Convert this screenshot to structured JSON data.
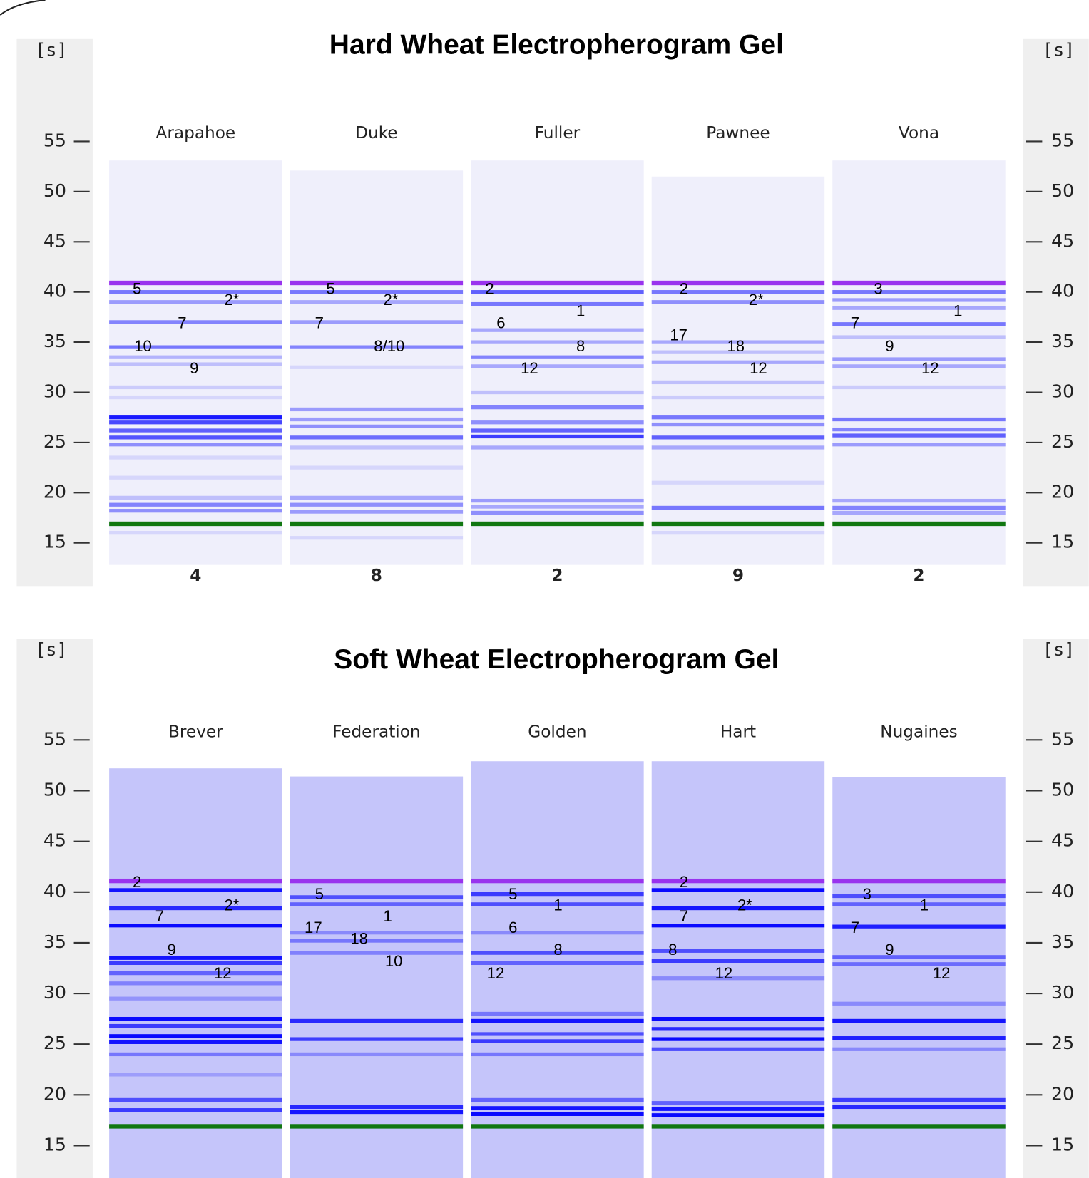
{
  "chart_data": [
    {
      "type": "gel",
      "title": "Hard Wheat  Electropherogram Gel",
      "y_label": "[s]",
      "ylim": [
        10.7,
        65.2
      ],
      "yticks": [
        15,
        20,
        25,
        30,
        35,
        40,
        45,
        50,
        55
      ],
      "lane_color": "#efeffb",
      "band_color": "#0000ff",
      "markers": [
        {
          "time": 40.9,
          "color": "#9933ee"
        },
        {
          "time": 16.9,
          "color": "#117711"
        }
      ],
      "lanes": [
        {
          "name": "Arapahoe",
          "value": 4,
          "range": [
            12.8,
            53.1
          ],
          "bands": [
            [
              40.0,
              0.5
            ],
            [
              39.0,
              0.35
            ],
            [
              37.0,
              0.45
            ],
            [
              34.5,
              0.5
            ],
            [
              33.5,
              0.25
            ],
            [
              32.8,
              0.2
            ],
            [
              30.5,
              0.15
            ],
            [
              29.5,
              0.1
            ],
            [
              27.5,
              0.9
            ],
            [
              27.0,
              0.7
            ],
            [
              26.2,
              0.6
            ],
            [
              25.5,
              0.65
            ],
            [
              24.8,
              0.4
            ],
            [
              23.5,
              0.1
            ],
            [
              21.5,
              0.1
            ],
            [
              19.5,
              0.2
            ],
            [
              18.8,
              0.45
            ],
            [
              18.2,
              0.4
            ],
            [
              16.0,
              0.1
            ]
          ],
          "annotations": [
            {
              "label": "5",
              "time": 40.2
            },
            {
              "label": "2*",
              "time": 39.1
            },
            {
              "label": "7",
              "time": 36.8
            },
            {
              "label": "10",
              "time": 34.5
            },
            {
              "label": "9",
              "time": 32.3
            }
          ]
        },
        {
          "name": "Duke",
          "value": 8,
          "range": [
            12.8,
            52.1
          ],
          "bands": [
            [
              40.0,
              0.5
            ],
            [
              39.0,
              0.3
            ],
            [
              37.0,
              0.35
            ],
            [
              34.5,
              0.45
            ],
            [
              32.5,
              0.1
            ],
            [
              28.3,
              0.35
            ],
            [
              27.3,
              0.35
            ],
            [
              26.6,
              0.4
            ],
            [
              25.5,
              0.55
            ],
            [
              24.5,
              0.2
            ],
            [
              22.5,
              0.1
            ],
            [
              19.5,
              0.3
            ],
            [
              18.8,
              0.4
            ],
            [
              18.1,
              0.35
            ],
            [
              15.5,
              0.1
            ]
          ],
          "annotations": [
            {
              "label": "5",
              "time": 40.2
            },
            {
              "label": "2*",
              "time": 39.1
            },
            {
              "label": "7",
              "time": 36.8
            },
            {
              "label": "8/10",
              "time": 34.5
            }
          ]
        },
        {
          "name": "Fuller",
          "value": 2,
          "range": [
            12.8,
            53.1
          ],
          "bands": [
            [
              40.0,
              0.6
            ],
            [
              38.8,
              0.5
            ],
            [
              36.2,
              0.3
            ],
            [
              35.0,
              0.3
            ],
            [
              33.5,
              0.45
            ],
            [
              32.6,
              0.3
            ],
            [
              30.0,
              0.2
            ],
            [
              28.5,
              0.45
            ],
            [
              27.0,
              0.4
            ],
            [
              26.2,
              0.6
            ],
            [
              25.6,
              0.75
            ],
            [
              24.5,
              0.3
            ],
            [
              19.2,
              0.35
            ],
            [
              18.6,
              0.3
            ],
            [
              18.0,
              0.4
            ]
          ],
          "annotations": [
            {
              "label": "2",
              "time": 40.2
            },
            {
              "label": "1",
              "time": 38.0
            },
            {
              "label": "6",
              "time": 36.8
            },
            {
              "label": "8",
              "time": 34.5
            },
            {
              "label": "12",
              "time": 32.3
            }
          ]
        },
        {
          "name": "Pawnee",
          "value": 9,
          "range": [
            12.8,
            51.5
          ],
          "bands": [
            [
              40.0,
              0.5
            ],
            [
              39.0,
              0.4
            ],
            [
              35.0,
              0.3
            ],
            [
              34.0,
              0.2
            ],
            [
              33.0,
              0.3
            ],
            [
              31.0,
              0.2
            ],
            [
              29.5,
              0.15
            ],
            [
              27.5,
              0.5
            ],
            [
              26.8,
              0.4
            ],
            [
              25.5,
              0.6
            ],
            [
              24.5,
              0.3
            ],
            [
              21.0,
              0.1
            ],
            [
              18.5,
              0.5
            ],
            [
              16.0,
              0.1
            ]
          ],
          "annotations": [
            {
              "label": "2",
              "time": 40.2
            },
            {
              "label": "2*",
              "time": 39.1
            },
            {
              "label": "17",
              "time": 35.6
            },
            {
              "label": "18",
              "time": 34.5
            },
            {
              "label": "12",
              "time": 32.3
            }
          ]
        },
        {
          "name": "Vona",
          "value": 2,
          "range": [
            12.8,
            53.1
          ],
          "bands": [
            [
              40.0,
              0.5
            ],
            [
              39.2,
              0.35
            ],
            [
              38.4,
              0.3
            ],
            [
              36.8,
              0.5
            ],
            [
              35.5,
              0.2
            ],
            [
              33.3,
              0.35
            ],
            [
              32.6,
              0.3
            ],
            [
              30.5,
              0.15
            ],
            [
              27.3,
              0.5
            ],
            [
              26.3,
              0.45
            ],
            [
              25.7,
              0.6
            ],
            [
              24.8,
              0.35
            ],
            [
              19.2,
              0.3
            ],
            [
              18.5,
              0.45
            ],
            [
              18.0,
              0.3
            ]
          ],
          "annotations": [
            {
              "label": "3",
              "time": 40.2
            },
            {
              "label": "1",
              "time": 38.0
            },
            {
              "label": "7",
              "time": 36.8
            },
            {
              "label": "9",
              "time": 34.5
            },
            {
              "label": "12",
              "time": 32.3
            }
          ]
        }
      ]
    },
    {
      "type": "gel",
      "title": "Soft Wheat Electropherogram Gel",
      "y_label": "[s]",
      "ylim": [
        11.8,
        65.0
      ],
      "yticks": [
        15,
        20,
        25,
        30,
        35,
        40,
        45,
        50,
        55
      ],
      "lane_color": "#c5c5fa",
      "band_color": "#0000ff",
      "markers": [
        {
          "time": 41.1,
          "color": "#9933ee"
        },
        {
          "time": 16.9,
          "color": "#117711"
        }
      ],
      "lanes": [
        {
          "name": "Brever",
          "range": [
            11.8,
            52.2
          ],
          "bands": [
            [
              40.2,
              0.9
            ],
            [
              38.4,
              0.8
            ],
            [
              36.7,
              0.95
            ],
            [
              33.5,
              0.9
            ],
            [
              33.0,
              0.7
            ],
            [
              32.0,
              0.5
            ],
            [
              31.0,
              0.35
            ],
            [
              29.5,
              0.25
            ],
            [
              27.5,
              0.95
            ],
            [
              26.8,
              0.7
            ],
            [
              25.8,
              0.95
            ],
            [
              25.2,
              0.9
            ],
            [
              24.0,
              0.4
            ],
            [
              22.0,
              0.2
            ],
            [
              19.5,
              0.6
            ],
            [
              18.5,
              0.7
            ]
          ],
          "annotations": [
            {
              "label": "2",
              "time": 40.9
            },
            {
              "label": "2*",
              "time": 38.6
            },
            {
              "label": "7",
              "time": 37.5
            },
            {
              "label": "9",
              "time": 34.2
            },
            {
              "label": "12",
              "time": 31.9
            }
          ]
        },
        {
          "name": "Federation",
          "range": [
            11.8,
            51.4
          ],
          "bands": [
            [
              39.5,
              0.6
            ],
            [
              38.8,
              0.5
            ],
            [
              36.0,
              0.3
            ],
            [
              35.2,
              0.4
            ],
            [
              34.0,
              0.35
            ],
            [
              27.3,
              0.8
            ],
            [
              25.5,
              0.7
            ],
            [
              24.0,
              0.3
            ],
            [
              18.8,
              0.8
            ],
            [
              18.3,
              0.9
            ]
          ],
          "annotations": [
            {
              "label": "5",
              "time": 39.7
            },
            {
              "label": "1",
              "time": 37.5
            },
            {
              "label": "17",
              "time": 36.4
            },
            {
              "label": "18",
              "time": 35.3
            },
            {
              "label": "10",
              "time": 33.1
            }
          ]
        },
        {
          "name": "Golden",
          "range": [
            11.8,
            52.9
          ],
          "bands": [
            [
              39.8,
              0.7
            ],
            [
              38.8,
              0.6
            ],
            [
              36.0,
              0.3
            ],
            [
              34.0,
              0.6
            ],
            [
              33.0,
              0.5
            ],
            [
              28.0,
              0.4
            ],
            [
              27.3,
              0.9
            ],
            [
              26.0,
              0.6
            ],
            [
              25.3,
              0.7
            ],
            [
              24.0,
              0.4
            ],
            [
              19.5,
              0.5
            ],
            [
              18.7,
              0.9
            ],
            [
              18.1,
              0.95
            ]
          ],
          "annotations": [
            {
              "label": "5",
              "time": 39.7
            },
            {
              "label": "1",
              "time": 38.6
            },
            {
              "label": "6",
              "time": 36.4
            },
            {
              "label": "8",
              "time": 34.2
            },
            {
              "label": "12",
              "time": 31.9
            }
          ]
        },
        {
          "name": "Hart",
          "range": [
            11.8,
            52.9
          ],
          "bands": [
            [
              40.2,
              0.95
            ],
            [
              38.4,
              0.9
            ],
            [
              36.7,
              0.95
            ],
            [
              34.2,
              0.6
            ],
            [
              33.2,
              0.7
            ],
            [
              31.5,
              0.3
            ],
            [
              27.5,
              0.95
            ],
            [
              26.5,
              0.8
            ],
            [
              25.5,
              0.95
            ],
            [
              24.5,
              0.6
            ],
            [
              19.2,
              0.5
            ],
            [
              18.6,
              0.9
            ],
            [
              18.0,
              0.95
            ]
          ],
          "annotations": [
            {
              "label": "2",
              "time": 40.9
            },
            {
              "label": "2*",
              "time": 38.6
            },
            {
              "label": "7",
              "time": 37.5
            },
            {
              "label": "8",
              "time": 34.2
            },
            {
              "label": "12",
              "time": 31.9
            }
          ]
        },
        {
          "name": "Nugaines",
          "range": [
            11.8,
            51.3
          ],
          "bands": [
            [
              39.6,
              0.6
            ],
            [
              38.8,
              0.5
            ],
            [
              36.6,
              0.85
            ],
            [
              33.6,
              0.5
            ],
            [
              32.9,
              0.45
            ],
            [
              29.0,
              0.3
            ],
            [
              27.3,
              0.9
            ],
            [
              25.6,
              0.85
            ],
            [
              24.5,
              0.3
            ],
            [
              19.5,
              0.7
            ],
            [
              18.8,
              0.8
            ]
          ],
          "annotations": [
            {
              "label": "3",
              "time": 39.7
            },
            {
              "label": "1",
              "time": 38.6
            },
            {
              "label": "7",
              "time": 36.4
            },
            {
              "label": "9",
              "time": 34.2
            },
            {
              "label": "12",
              "time": 31.9
            }
          ]
        }
      ]
    }
  ]
}
